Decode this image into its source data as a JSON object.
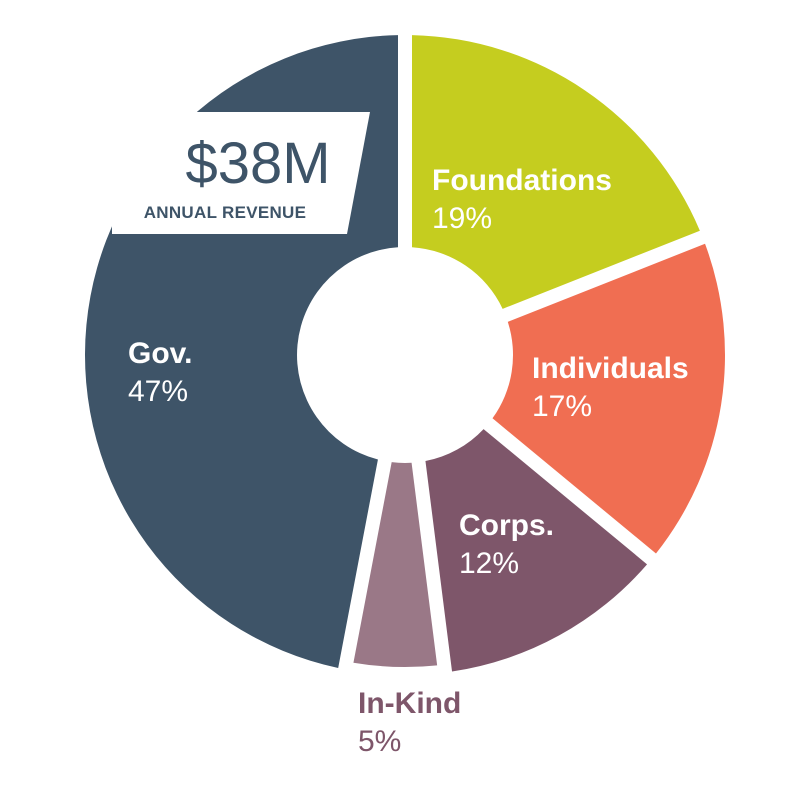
{
  "chart_data": {
    "type": "pie",
    "total": {
      "value": "$38M",
      "caption": "ANNUAL REVENUE"
    },
    "slices": [
      {
        "name": "Foundations",
        "value": 19,
        "label": "19%",
        "color": "#c5cd1f",
        "label_color": "#ffffff"
      },
      {
        "name": "Individuals",
        "value": 17,
        "label": "17%",
        "color": "#f06e52",
        "label_color": "#ffffff"
      },
      {
        "name": "Corps.",
        "value": 12,
        "label": "12%",
        "color": "#7e566a",
        "label_color": "#ffffff"
      },
      {
        "name": "In-Kind",
        "value": 5,
        "label": "5%",
        "color": "#9a7887",
        "label_color": "#7e566a"
      },
      {
        "name": "Gov.",
        "value": 47,
        "label": "47%",
        "color": "#3e5468",
        "label_color": "#ffffff"
      }
    ],
    "start_angle_deg": 0,
    "direction": "clockwise",
    "donut": true
  }
}
